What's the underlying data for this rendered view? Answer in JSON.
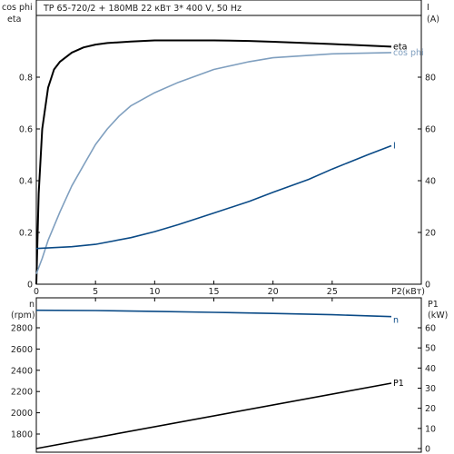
{
  "title": "TP 65-720/2 + 180MB    22 кВт    3* 400 V, 50 Hz",
  "colors": {
    "eta": "#000000",
    "cosphi": "#7f9fbf",
    "current": "#0a4a86",
    "speed": "#0a4a86",
    "power": "#000000",
    "frame": "#000000"
  },
  "top_axes": {
    "left_label_1": "cos phi",
    "left_label_2": "eta",
    "right_label_1": "I",
    "right_label_2": "(A)",
    "x_label": "P2(кВт)",
    "x_ticks": [
      "0",
      "5",
      "10",
      "15",
      "20",
      "25"
    ],
    "left_ticks": [
      "0",
      "0.2",
      "0.4",
      "0.6",
      "0.8"
    ],
    "right_ticks": [
      "0",
      "20",
      "40",
      "60",
      "80"
    ]
  },
  "bottom_axes": {
    "left_label_1": "n",
    "left_label_2": "(rpm)",
    "right_label_1": "P1",
    "right_label_2": "(kW)",
    "left_ticks": [
      "1800",
      "2000",
      "2200",
      "2400",
      "2600",
      "2800"
    ],
    "right_ticks": [
      "0",
      "10",
      "20",
      "30",
      "40",
      "50",
      "60"
    ]
  },
  "chart_data": [
    {
      "type": "line",
      "xlabel": "P2(кВт)",
      "ylabel": "cos phi / eta",
      "y2label": "I (A)",
      "xlim": [
        0,
        30
      ],
      "ylim": [
        0,
        1.0
      ],
      "y2lim": [
        0,
        100
      ],
      "series": [
        {
          "name": "eta",
          "axis": "left",
          "x": [
            0,
            0.2,
            0.5,
            1,
            1.5,
            2,
            3,
            4,
            5,
            6,
            8,
            10,
            12,
            15,
            18,
            20,
            25,
            30
          ],
          "values": [
            0,
            0.35,
            0.6,
            0.76,
            0.83,
            0.86,
            0.895,
            0.915,
            0.926,
            0.932,
            0.938,
            0.942,
            0.942,
            0.942,
            0.94,
            0.937,
            0.928,
            0.918
          ]
        },
        {
          "name": "cos phi",
          "axis": "left",
          "x": [
            0,
            0.5,
            1,
            2,
            3,
            4,
            5,
            6,
            7,
            8,
            10,
            12,
            15,
            18,
            20,
            25,
            30
          ],
          "values": [
            0.04,
            0.1,
            0.17,
            0.28,
            0.38,
            0.46,
            0.54,
            0.6,
            0.65,
            0.69,
            0.74,
            0.78,
            0.83,
            0.86,
            0.875,
            0.89,
            0.895
          ]
        },
        {
          "name": "I",
          "axis": "right",
          "x": [
            0,
            3,
            5,
            8,
            10,
            12,
            15,
            18,
            20,
            23,
            25,
            28,
            30
          ],
          "values": [
            13.8,
            14.5,
            15.4,
            18.0,
            20.3,
            23.0,
            27.5,
            32.0,
            35.5,
            40.5,
            44.5,
            50.0,
            53.5
          ]
        }
      ]
    },
    {
      "type": "line",
      "ylabel": "n (rpm)",
      "y2label": "P1 (kW)",
      "xlim": [
        0,
        30
      ],
      "ylim": [
        1680,
        3000
      ],
      "y2lim": [
        0,
        70
      ],
      "series": [
        {
          "name": "n",
          "axis": "left",
          "x": [
            0,
            5,
            10,
            15,
            20,
            25,
            30
          ],
          "values": [
            2965,
            2962,
            2955,
            2945,
            2935,
            2923,
            2905
          ]
        },
        {
          "name": "P1",
          "axis": "right",
          "x": [
            0,
            30
          ],
          "values": [
            0,
            32.5
          ]
        }
      ]
    }
  ]
}
